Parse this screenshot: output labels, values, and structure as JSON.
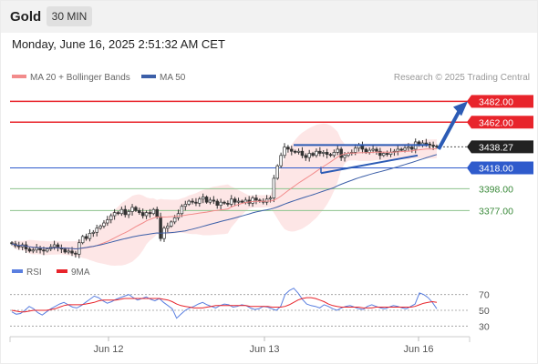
{
  "header": {
    "symbol": "Gold",
    "interval": "30 MIN"
  },
  "datetime": "Monday, June 16, 2025 2:51:32 AM CET",
  "legend": {
    "ma20_label": "MA 20 + Bollinger Bands",
    "ma50_label": "MA 50",
    "copyright": "Research © 2025 Trading Central",
    "rsi_label": "RSI",
    "ma9_label": "9MA"
  },
  "colors": {
    "resistance": "#e8242b",
    "support": "#2f5bcc",
    "target_green": "#8cc38c",
    "price_tag": "#222222",
    "ma20": "#f28b8b",
    "ma50": "#3c5fa8",
    "bollinger_fill": "#fde3e3",
    "rsi": "#5a7fe0",
    "rsi_ma": "#e8242b",
    "arrow": "#2c5bb5"
  },
  "chart_data": [
    {
      "type": "candlestick",
      "panel": "price",
      "x_ticks": [
        "Jun 12",
        "Jun 13",
        "Jun 16"
      ],
      "price_range": [
        3330,
        3492
      ],
      "levels": [
        {
          "value": 3482.0,
          "label": "3482.00",
          "kind": "resistance"
        },
        {
          "value": 3462.0,
          "label": "3462.00",
          "kind": "resistance"
        },
        {
          "value": 3438.27,
          "label": "3438.27",
          "kind": "current"
        },
        {
          "value": 3418.0,
          "label": "3418.00",
          "kind": "pivot"
        },
        {
          "value": 3398.0,
          "label": "3398.00",
          "kind": "support"
        },
        {
          "value": 3377.0,
          "label": "3377.00",
          "kind": "support"
        }
      ],
      "closes": [
        3345,
        3343,
        3342,
        3344,
        3340,
        3338,
        3339,
        3341,
        3339,
        3338,
        3340,
        3342,
        3344,
        3341,
        3340,
        3337,
        3338,
        3336,
        3335,
        3346,
        3352,
        3350,
        3355,
        3356,
        3360,
        3362,
        3365,
        3368,
        3372,
        3375,
        3374,
        3378,
        3373,
        3376,
        3380,
        3377,
        3375,
        3372,
        3375,
        3374,
        3378,
        3371,
        3350,
        3360,
        3362,
        3366,
        3370,
        3374,
        3381,
        3383,
        3386,
        3385,
        3384,
        3388,
        3390,
        3385,
        3387,
        3386,
        3382,
        3385,
        3384,
        3383,
        3388,
        3385,
        3386,
        3385,
        3387,
        3384,
        3389,
        3387,
        3386,
        3385,
        3388,
        3389,
        3408,
        3420,
        3430,
        3438,
        3436,
        3434,
        3433,
        3434,
        3430,
        3428,
        3432,
        3430,
        3434,
        3432,
        3433,
        3431,
        3430,
        3433,
        3436,
        3428,
        3430,
        3432,
        3433,
        3437,
        3440,
        3436,
        3433,
        3435,
        3436,
        3434,
        3430,
        3432,
        3431,
        3433,
        3434,
        3436,
        3435,
        3437,
        3438,
        3436,
        3443,
        3440,
        3442,
        3441,
        3440,
        3439,
        3438.27
      ],
      "overlays": {
        "triangle_upper_value": 3440,
        "triangle_lower_start_value": 3413,
        "triangle_apex_value": 3430,
        "projection_target": 3482
      }
    },
    {
      "type": "line",
      "panel": "RSI",
      "y_ticks": [
        70,
        50,
        30
      ],
      "ylim": [
        20,
        80
      ],
      "series": [
        {
          "name": "RSI",
          "values": [
            48,
            45,
            46,
            50,
            55,
            52,
            47,
            44,
            48,
            52,
            55,
            58,
            60,
            57,
            54,
            53,
            56,
            60,
            64,
            68,
            66,
            62,
            59,
            61,
            64,
            66,
            68,
            70,
            66,
            63,
            65,
            67,
            64,
            62,
            65,
            60,
            56,
            52,
            40,
            45,
            50,
            53,
            55,
            58,
            60,
            57,
            55,
            53,
            56,
            58,
            57,
            54,
            55,
            57,
            56,
            53,
            51,
            52,
            55,
            54,
            52,
            50,
            55,
            70,
            75,
            78,
            72,
            64,
            58,
            56,
            55,
            53,
            57,
            55,
            52,
            50,
            53,
            55,
            56,
            54,
            52,
            51,
            55,
            57,
            55,
            53,
            52,
            54,
            56,
            55,
            53,
            52,
            55,
            58,
            72,
            70,
            66,
            60,
            52
          ]
        },
        {
          "name": "9MA",
          "values": [
            50,
            49,
            48,
            48,
            49,
            50,
            50,
            50,
            50,
            51,
            52,
            54,
            56,
            57,
            57,
            57,
            57,
            58,
            59,
            60,
            62,
            63,
            63,
            63,
            63,
            64,
            65,
            65,
            65,
            65,
            65,
            65,
            65,
            65,
            65,
            64,
            63,
            61,
            58,
            56,
            55,
            54,
            53,
            53,
            53,
            54,
            55,
            56,
            56,
            56,
            56,
            56,
            56,
            56,
            56,
            55,
            55,
            55,
            55,
            55,
            54,
            54,
            54,
            55,
            57,
            60,
            63,
            65,
            66,
            66,
            65,
            63,
            61,
            58,
            56,
            55,
            54,
            54,
            54,
            54,
            54,
            53,
            53,
            53,
            54,
            54,
            54,
            54,
            54,
            54,
            54,
            54,
            54,
            55,
            57,
            59,
            60,
            61,
            60
          ]
        }
      ]
    }
  ]
}
